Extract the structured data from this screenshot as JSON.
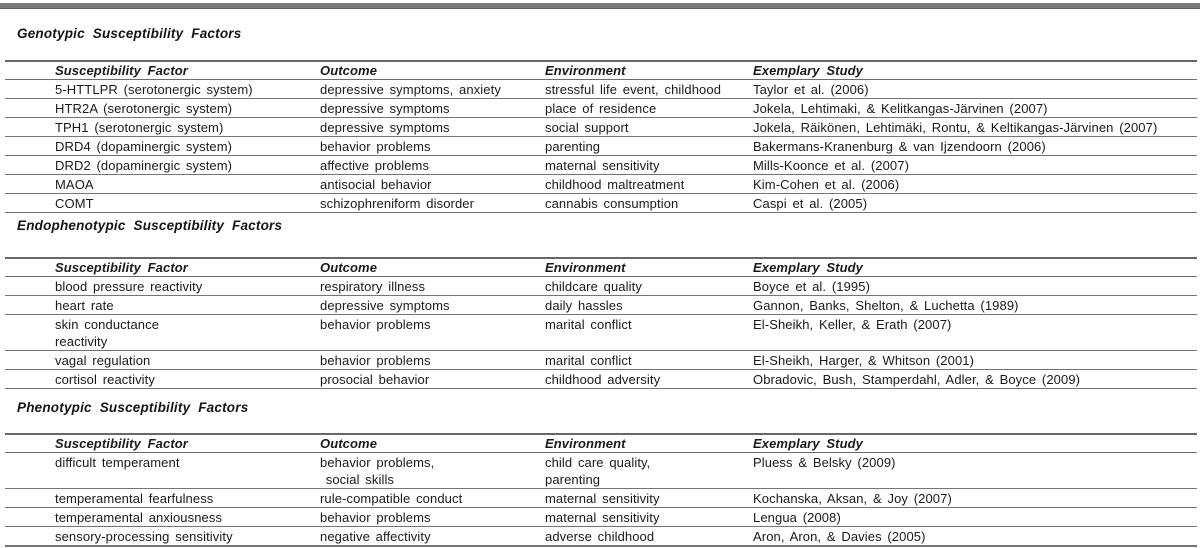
{
  "colors": {
    "top_bar_gray": "#7c7c7c",
    "rule_gray": "#757575",
    "text": "#1a1a1a"
  },
  "columns": [
    "Susceptibility Factor",
    "Outcome",
    "Environment",
    "Exemplary Study"
  ],
  "sections": [
    {
      "title": "Genotypic Susceptibility Factors",
      "rows": [
        [
          "5-HTTLPR (serotonergic system)",
          "depressive symptoms, anxiety",
          "stressful life event, childhood",
          "Taylor et al. (2006)"
        ],
        [
          "HTR2A (serotonergic system)",
          "depressive symptoms",
          "place of residence",
          "Jokela, Lehtimaki, & Kelitkangas-Järvinen (2007)"
        ],
        [
          "TPH1 (serotonergic system)",
          "depressive symptoms",
          "social support",
          "Jokela, Räikönen, Lehtimäki, Rontu, & Keltikangas-Järvinen (2007)"
        ],
        [
          "DRD4 (dopaminergic system)",
          "behavior problems",
          "parenting",
          "Bakermans-Kranenburg & van Ijzendoorn (2006)"
        ],
        [
          "DRD2 (dopaminergic system)",
          "affective problems",
          "maternal sensitivity",
          "Mills-Koonce et al. (2007)"
        ],
        [
          "MAOA",
          "antisocial behavior",
          "childhood maltreatment",
          "Kim-Cohen et al. (2006)"
        ],
        [
          "COMT",
          "schizophreniform disorder",
          "cannabis consumption",
          "Caspi et al. (2005)"
        ]
      ]
    },
    {
      "title": "Endophenotypic Susceptibility Factors",
      "rows": [
        [
          "blood pressure reactivity",
          "respiratory illness",
          "childcare quality",
          "Boyce et al. (1995)"
        ],
        [
          "heart rate",
          "depressive symptoms",
          "daily hassles",
          "Gannon, Banks, Shelton, & Luchetta (1989)"
        ],
        [
          "skin conductance\nreactivity",
          "behavior problems",
          "marital conflict",
          "El-Sheikh, Keller, & Erath (2007)"
        ],
        [
          "vagal regulation",
          "behavior problems",
          "marital conflict",
          "El-Sheikh, Harger, & Whitson (2001)"
        ],
        [
          "cortisol reactivity",
          "prosocial behavior",
          "childhood adversity",
          "Obradovic, Bush, Stamperdahl, Adler, & Boyce (2009)"
        ]
      ]
    },
    {
      "title": "Phenotypic Susceptibility Factors",
      "rows": [
        [
          "difficult temperament",
          "behavior problems,\n social skills",
          "child care quality,\nparenting",
          "Pluess & Belsky (2009)"
        ],
        [
          "temperamental fearfulness",
          "rule-compatible conduct",
          "maternal sensitivity",
          "Kochanska, Aksan, & Joy (2007)"
        ],
        [
          "temperamental anxiousness",
          "behavior problems",
          "maternal sensitivity",
          "Lengua (2008)"
        ],
        [
          "sensory-processing sensitivity",
          "negative affectivity",
          "adverse childhood",
          "Aron, Aron, & Davies (2005)"
        ]
      ]
    }
  ]
}
